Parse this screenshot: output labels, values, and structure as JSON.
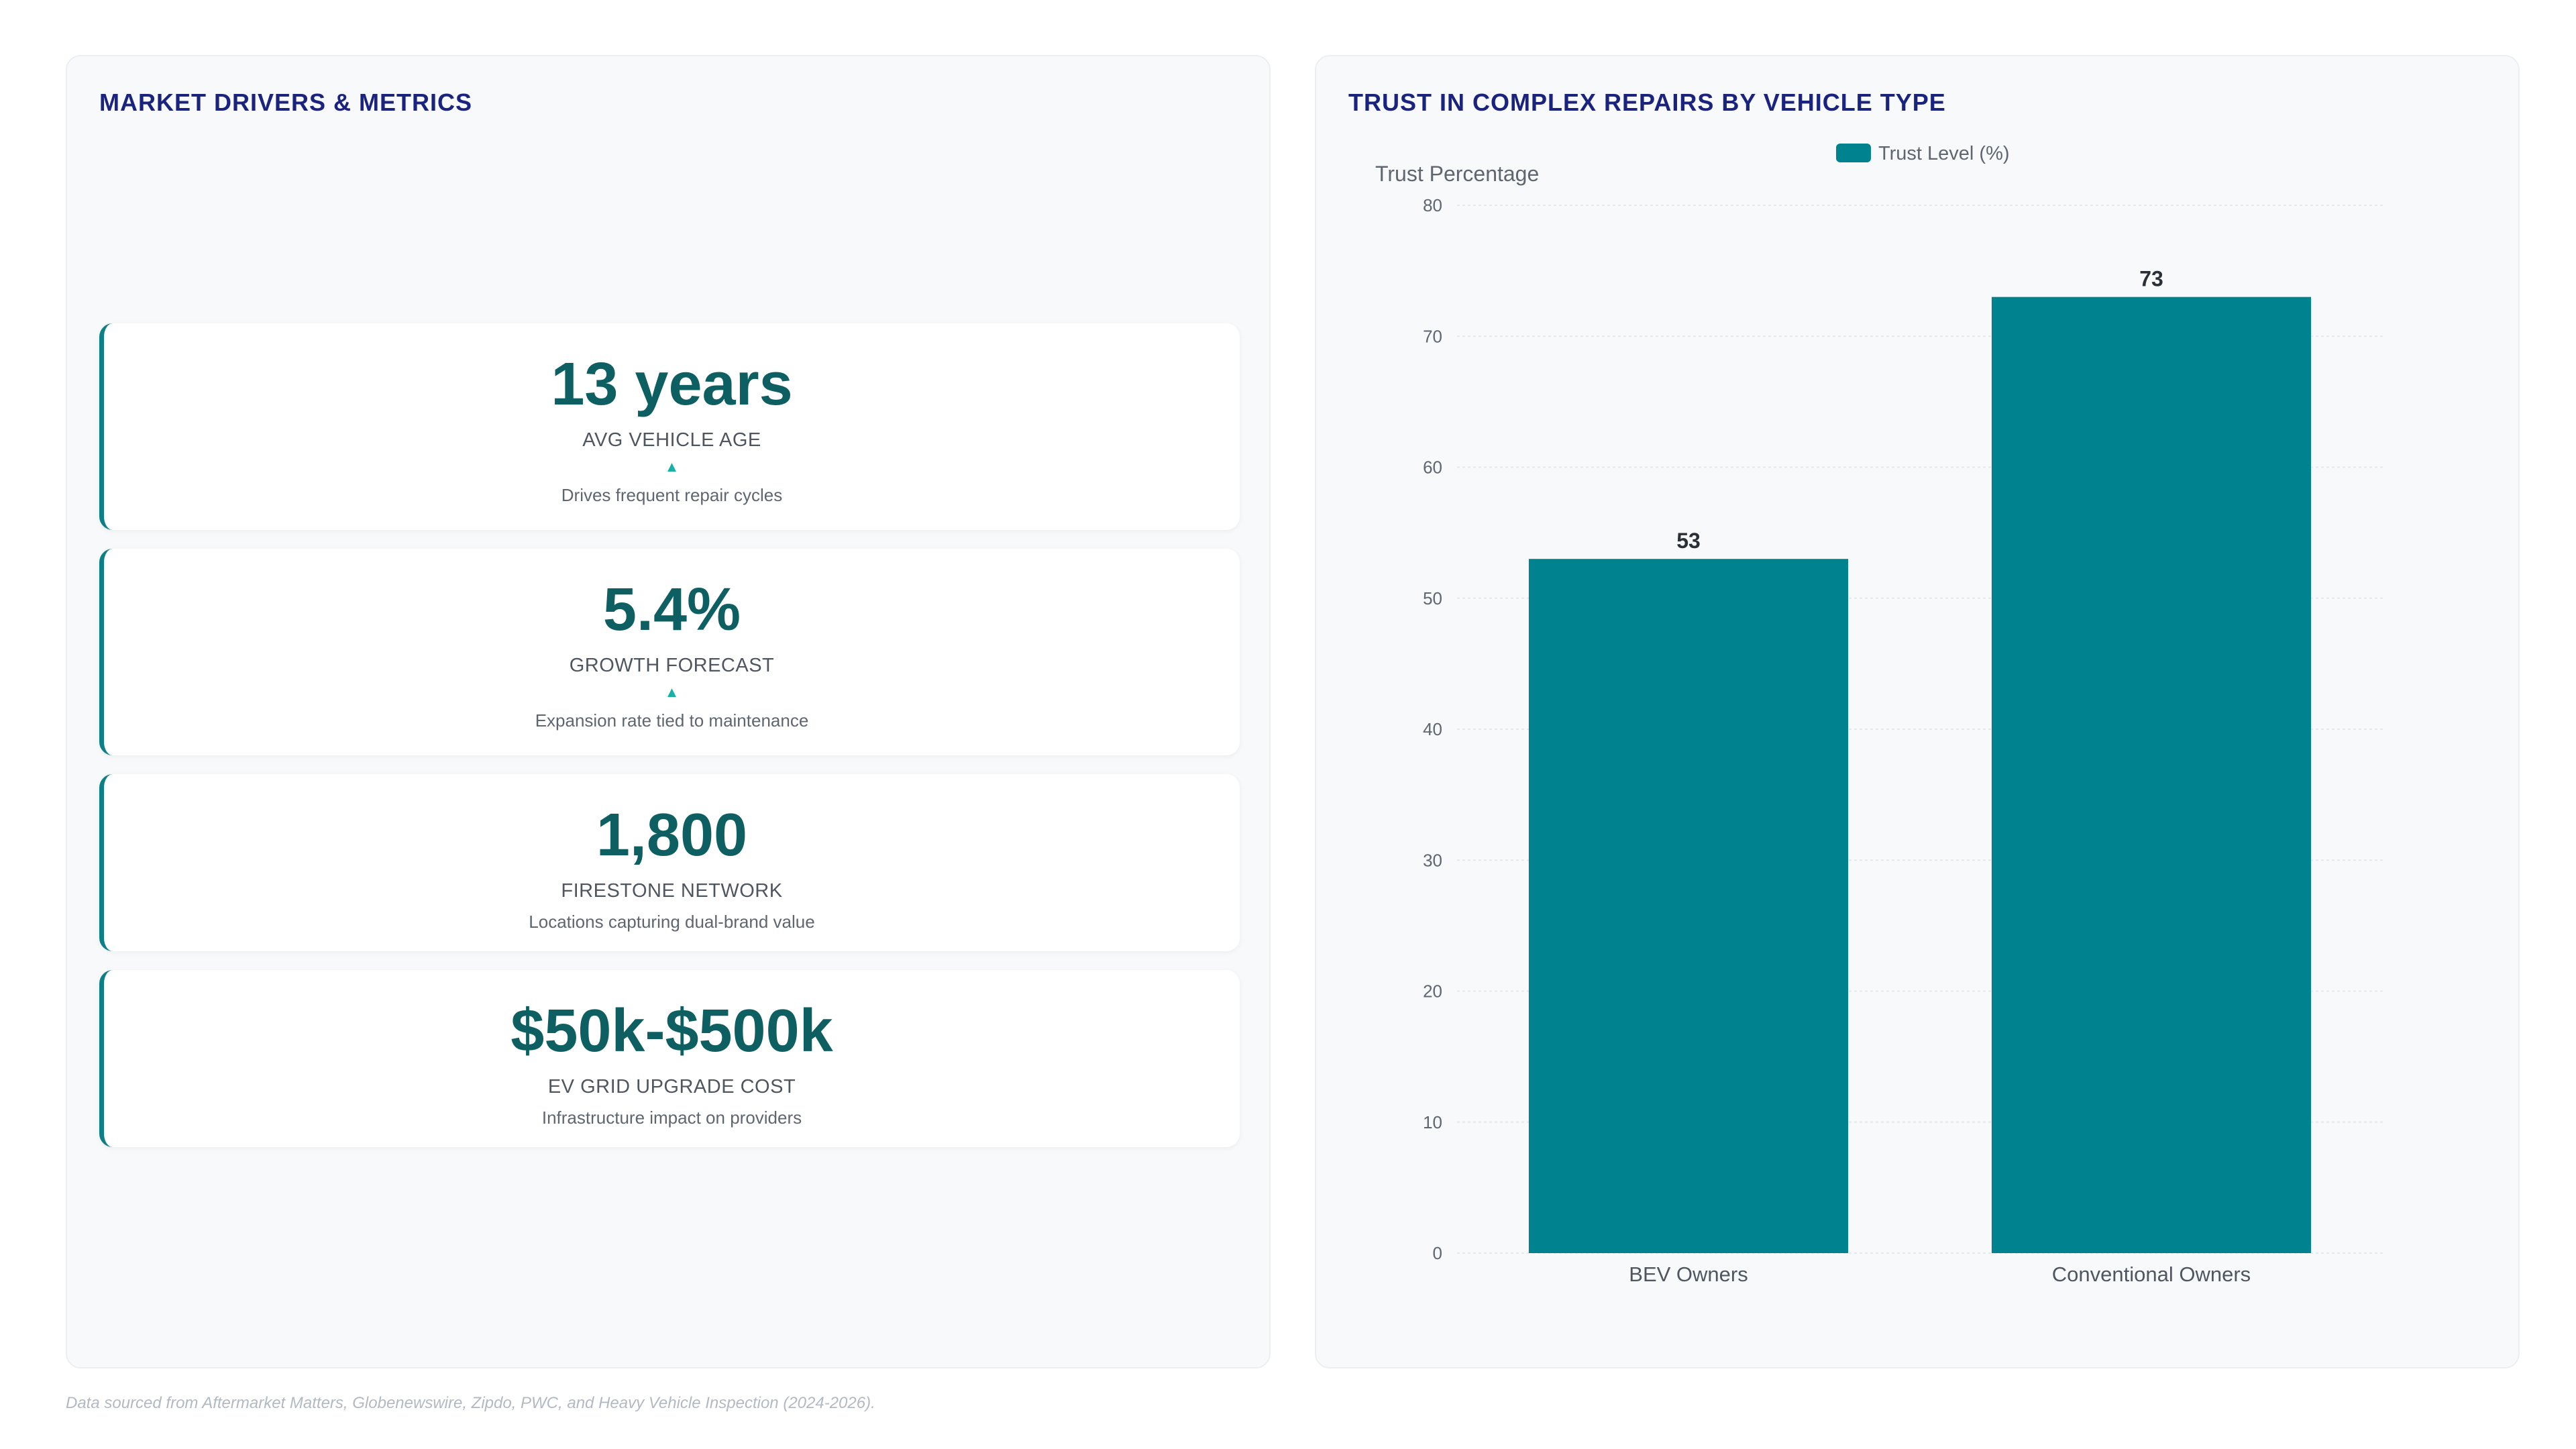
{
  "left_panel": {
    "title": "MARKET DRIVERS & METRICS",
    "metrics": [
      {
        "value": "13 years",
        "label": "AVG VEHICLE AGE",
        "arrow": "▲",
        "description": "Drives frequent repair cycles"
      },
      {
        "value": "5.4%",
        "label": "GROWTH FORECAST",
        "arrow": "▲",
        "description": "Expansion rate tied to maintenance"
      },
      {
        "value": "1,800",
        "label": "FIRESTONE NETWORK",
        "description": "Locations capturing dual-brand value"
      },
      {
        "value": "$50k-$500k",
        "label": "EV GRID UPGRADE COST",
        "description": "Infrastructure impact on providers"
      }
    ]
  },
  "right_panel": {
    "title": "TRUST IN COMPLEX REPAIRS BY VEHICLE TYPE"
  },
  "chart_data": {
    "type": "bar",
    "title": "TRUST IN COMPLEX REPAIRS BY VEHICLE TYPE",
    "categories": [
      "BEV Owners",
      "Conventional Owners"
    ],
    "series": [
      {
        "name": "Trust Level (%)",
        "values": [
          53,
          73
        ],
        "color": "#00838f"
      }
    ],
    "ylabel": "Trust Percentage",
    "xlabel": "",
    "ylim": [
      0,
      80
    ],
    "yticks": [
      0,
      10,
      20,
      30,
      40,
      50,
      60,
      70,
      80
    ],
    "grid": true,
    "legend_position": "top-center",
    "data_labels": true
  },
  "footer": {
    "source": "Data sourced from Aftermarket Matters, Globenewswire, Zipdo, PWC, and Heavy Vehicle Inspection (2024-2026)."
  }
}
